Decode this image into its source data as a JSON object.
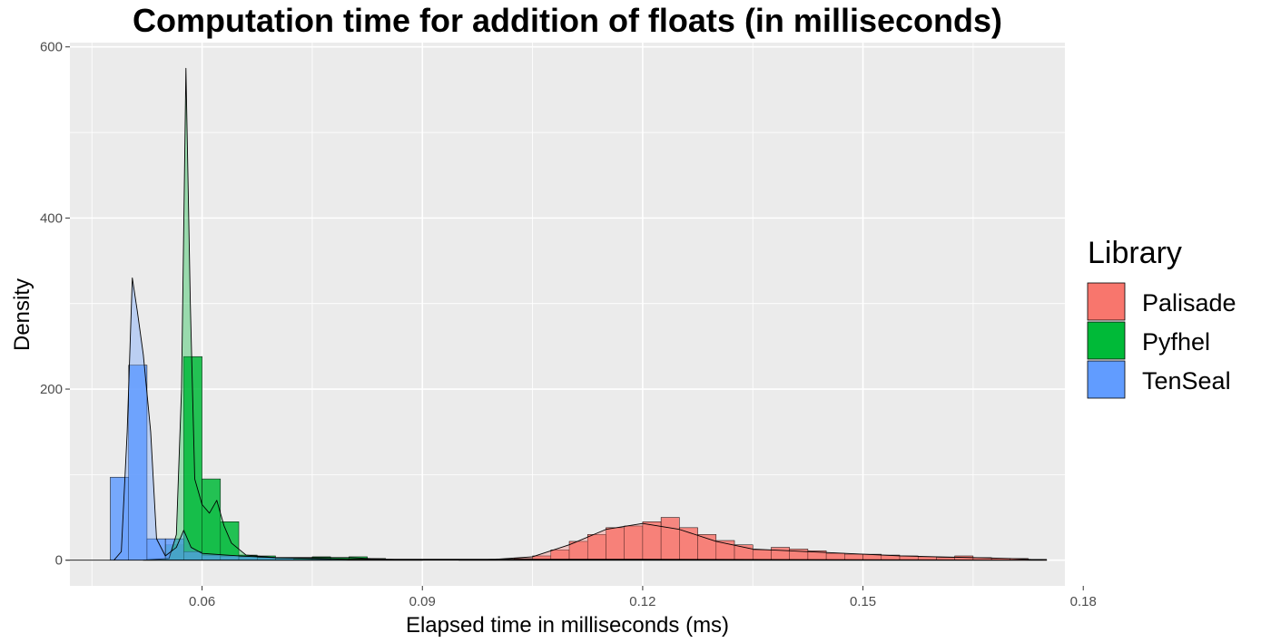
{
  "chart_data": {
    "type": "histogram+density",
    "title": "Computation time for addition of floats (in milliseconds)",
    "xlabel": "Elapsed time in milliseconds (ms)",
    "ylabel": "Density",
    "xlim": [
      0.042,
      0.1775
    ],
    "ylim": [
      -30,
      605
    ],
    "xticks": [
      0.06,
      0.09,
      0.12,
      0.15,
      0.18
    ],
    "xtick_labels": [
      "0.06",
      "0.09",
      "0.12",
      "0.15",
      "0.18"
    ],
    "yticks": [
      0,
      200,
      400,
      600
    ],
    "ytick_labels": [
      "0",
      "200",
      "400",
      "600"
    ],
    "grid": true,
    "legend": {
      "title": "Library",
      "position": "right"
    },
    "bin_width": 0.0025,
    "series": [
      {
        "name": "Palisade",
        "color": "#F8766D",
        "bins": [
          [
            0.0975,
            0.3
          ],
          [
            0.1,
            0.8
          ],
          [
            0.1025,
            2
          ],
          [
            0.105,
            5
          ],
          [
            0.1075,
            12
          ],
          [
            0.11,
            22
          ],
          [
            0.1125,
            30
          ],
          [
            0.115,
            38
          ],
          [
            0.1175,
            40
          ],
          [
            0.12,
            45
          ],
          [
            0.1225,
            50
          ],
          [
            0.125,
            38
          ],
          [
            0.1275,
            30
          ],
          [
            0.13,
            23
          ],
          [
            0.1325,
            18
          ],
          [
            0.135,
            12
          ],
          [
            0.1375,
            15
          ],
          [
            0.14,
            13
          ],
          [
            0.1425,
            11
          ],
          [
            0.145,
            8
          ],
          [
            0.1475,
            7
          ],
          [
            0.15,
            7
          ],
          [
            0.1525,
            6
          ],
          [
            0.155,
            5
          ],
          [
            0.1575,
            4
          ],
          [
            0.16,
            3
          ],
          [
            0.1625,
            5
          ],
          [
            0.165,
            3
          ],
          [
            0.1675,
            2
          ],
          [
            0.17,
            2
          ],
          [
            0.1725,
            1
          ]
        ],
        "density": [
          [
            0.095,
            0
          ],
          [
            0.1,
            1
          ],
          [
            0.105,
            4
          ],
          [
            0.11,
            18
          ],
          [
            0.115,
            36
          ],
          [
            0.12,
            43
          ],
          [
            0.125,
            36
          ],
          [
            0.13,
            22
          ],
          [
            0.135,
            13
          ],
          [
            0.14,
            11
          ],
          [
            0.145,
            9
          ],
          [
            0.15,
            7
          ],
          [
            0.155,
            5
          ],
          [
            0.16,
            4
          ],
          [
            0.165,
            3
          ],
          [
            0.17,
            2
          ],
          [
            0.175,
            0
          ]
        ]
      },
      {
        "name": "Pyfhel",
        "color": "#00BA38",
        "bins": [
          [
            0.0525,
            2
          ],
          [
            0.055,
            18
          ],
          [
            0.0575,
            238
          ],
          [
            0.06,
            95
          ],
          [
            0.0625,
            45
          ],
          [
            0.065,
            6
          ],
          [
            0.0675,
            5
          ],
          [
            0.07,
            3
          ],
          [
            0.0725,
            2
          ],
          [
            0.075,
            4
          ],
          [
            0.0775,
            3
          ],
          [
            0.08,
            4
          ],
          [
            0.0825,
            2
          ],
          [
            0.085,
            1
          ]
        ],
        "density": [
          [
            0.052,
            0
          ],
          [
            0.0555,
            2
          ],
          [
            0.0565,
            30
          ],
          [
            0.0572,
            200
          ],
          [
            0.0578,
            575
          ],
          [
            0.0584,
            300
          ],
          [
            0.059,
            95
          ],
          [
            0.06,
            65
          ],
          [
            0.061,
            55
          ],
          [
            0.062,
            70
          ],
          [
            0.063,
            40
          ],
          [
            0.064,
            20
          ],
          [
            0.066,
            6
          ],
          [
            0.07,
            3
          ],
          [
            0.075,
            3
          ],
          [
            0.08,
            3
          ],
          [
            0.085,
            1
          ],
          [
            0.09,
            0
          ]
        ]
      },
      {
        "name": "TenSeal",
        "color": "#619CFF",
        "bins": [
          [
            0.0475,
            97
          ],
          [
            0.05,
            228
          ],
          [
            0.0525,
            25
          ],
          [
            0.055,
            25
          ],
          [
            0.0575,
            10
          ],
          [
            0.06,
            6
          ],
          [
            0.0625,
            5
          ],
          [
            0.065,
            4
          ],
          [
            0.0675,
            3
          ],
          [
            0.07,
            2
          ],
          [
            0.0725,
            1
          ],
          [
            0.075,
            1
          ]
        ],
        "density": [
          [
            0.0415,
            0
          ],
          [
            0.048,
            0
          ],
          [
            0.049,
            10
          ],
          [
            0.0498,
            150
          ],
          [
            0.0505,
            330
          ],
          [
            0.0512,
            290
          ],
          [
            0.052,
            240
          ],
          [
            0.053,
            150
          ],
          [
            0.0538,
            25
          ],
          [
            0.055,
            5
          ],
          [
            0.0565,
            15
          ],
          [
            0.0575,
            35
          ],
          [
            0.0585,
            15
          ],
          [
            0.06,
            8
          ],
          [
            0.065,
            5
          ],
          [
            0.07,
            3
          ],
          [
            0.08,
            1
          ],
          [
            0.1,
            1
          ],
          [
            0.12,
            1
          ],
          [
            0.15,
            0.5
          ],
          [
            0.175,
            0
          ]
        ]
      }
    ]
  }
}
